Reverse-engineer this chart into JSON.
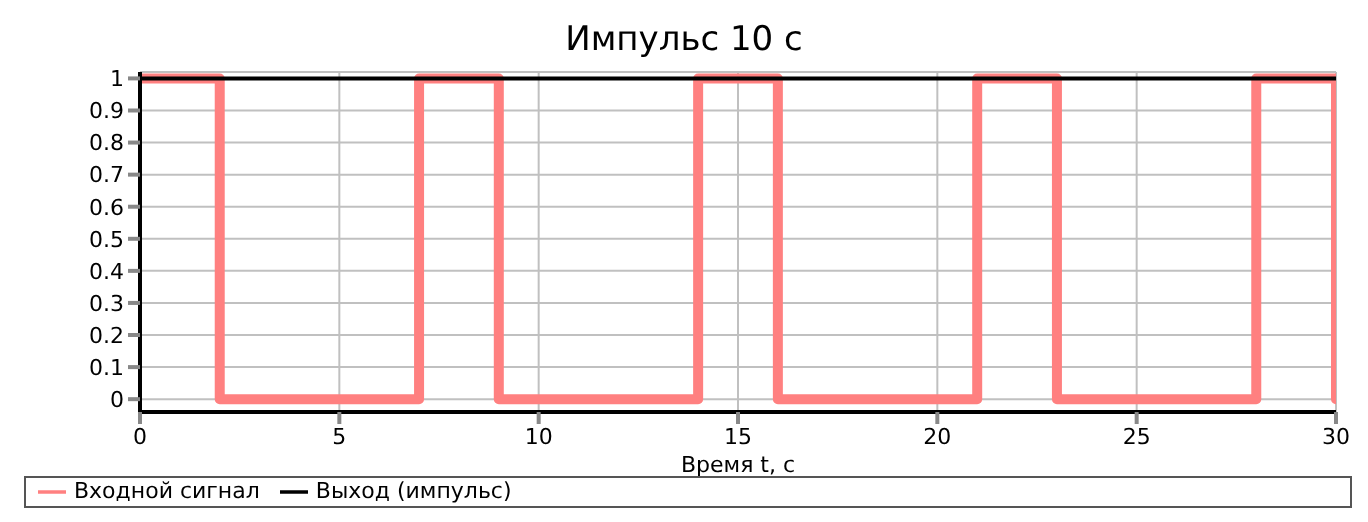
{
  "chart_data": {
    "type": "step",
    "title": "Импульс 10 с",
    "xlabel": "Время t, с",
    "xlim": [
      0,
      30
    ],
    "xticks": [
      0,
      5,
      10,
      15,
      20,
      25,
      30
    ],
    "ylim": [
      -0.04,
      1.02
    ],
    "yticks": [
      0,
      0.1,
      0.2,
      0.3,
      0.4,
      0.5,
      0.6,
      0.7,
      0.8,
      0.9,
      1
    ],
    "grid": true,
    "legend": "bottom",
    "series": [
      {
        "name": "Входной сигнал",
        "color": "#ff8080",
        "x": [
          0,
          2,
          7,
          9,
          14,
          16,
          21,
          23,
          28,
          30
        ],
        "values": [
          1,
          0,
          1,
          0,
          1,
          0,
          1,
          0,
          1,
          0
        ]
      },
      {
        "name": "Выход (импульс)",
        "color": "#000000",
        "x": [
          0,
          30
        ],
        "values": [
          1,
          1
        ]
      }
    ]
  }
}
